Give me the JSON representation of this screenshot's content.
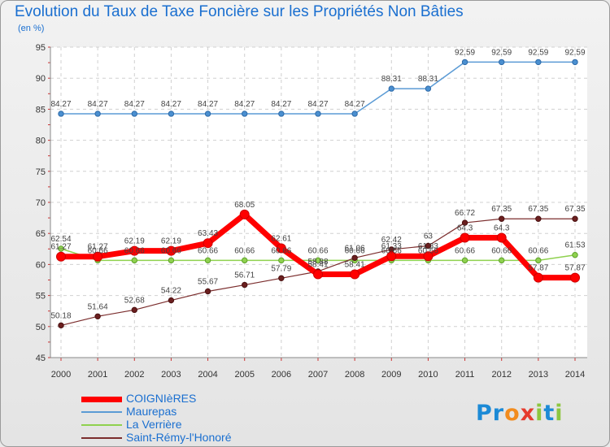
{
  "header": {
    "title": "Evolution du Taux de Taxe Foncière sur les Propriétés Non Bâties",
    "unit": "(en %)"
  },
  "logo": {
    "text": "Proxiti"
  },
  "chart_data": {
    "type": "line",
    "title": "Evolution du Taux de Taxe Foncière sur les Propriétés Non Bâties",
    "ylabel": "(en %)",
    "xlabel": "",
    "x": [
      "2000",
      "2001",
      "2002",
      "2003",
      "2004",
      "2005",
      "2006",
      "2007",
      "2008",
      "2009",
      "2010",
      "2011",
      "2012",
      "2013",
      "2014"
    ],
    "ylim": [
      45,
      95
    ],
    "yticks": [
      45,
      50,
      55,
      60,
      65,
      70,
      75,
      80,
      85,
      90,
      95
    ],
    "grid": true,
    "legend_position": "bottom-left",
    "series": [
      {
        "name": "COIGNIèRES",
        "color": "#ff0000",
        "values": [
          61.27,
          61.27,
          62.19,
          62.19,
          63.43,
          68.05,
          62.61,
          58.41,
          58.41,
          61.33,
          61.33,
          64.3,
          64.3,
          57.87,
          57.87
        ],
        "labels": [
          "61.27",
          "61.27",
          "62.19",
          "62.19",
          "63.43",
          "68.05",
          "62.61",
          "58.41",
          "58.41",
          "61.33",
          "61.33",
          "64.3",
          "64.3",
          "57.87",
          "57.87"
        ]
      },
      {
        "name": "Maurepas",
        "color": "#5b9bd5",
        "values": [
          84.27,
          84.27,
          84.27,
          84.27,
          84.27,
          84.27,
          84.27,
          84.27,
          84.27,
          88.31,
          88.31,
          92.59,
          92.59,
          92.59,
          92.59
        ],
        "labels": [
          "84.27",
          "84.27",
          "84.27",
          "84.27",
          "84.27",
          "84.27",
          "84.27",
          "84.27",
          "84.27",
          "88.31",
          "88.31",
          "92.59",
          "92.59",
          "92.59",
          "92.59"
        ]
      },
      {
        "name": "La Verrière",
        "color": "#8fd14f",
        "values": [
          62.54,
          60.66,
          60.66,
          60.66,
          60.66,
          60.66,
          60.66,
          60.66,
          60.66,
          60.66,
          60.66,
          60.66,
          60.66,
          60.66,
          61.53
        ],
        "labels": [
          "62.54",
          "60.66",
          "60.66",
          "60.66",
          "60.66",
          "60.66",
          "60.66",
          "60.66",
          "60.66",
          "60.66",
          "60.66",
          "60.66",
          "60.66",
          "60.66",
          "61.53"
        ]
      },
      {
        "name": "Saint-Rémy-l'Honoré",
        "color": "#7b2d2d",
        "values": [
          50.18,
          51.64,
          52.68,
          54.22,
          55.67,
          56.71,
          57.79,
          58.88,
          61.06,
          62.42,
          63.0,
          66.72,
          67.35,
          67.35,
          67.35
        ],
        "labels": [
          "50.18",
          "51.64",
          "52.68",
          "54.22",
          "55.67",
          "56.71",
          "57.79",
          "58.88",
          "61.06",
          "62.42",
          "63",
          "66.72",
          "67.35",
          "67.35",
          "67.35"
        ]
      }
    ]
  }
}
